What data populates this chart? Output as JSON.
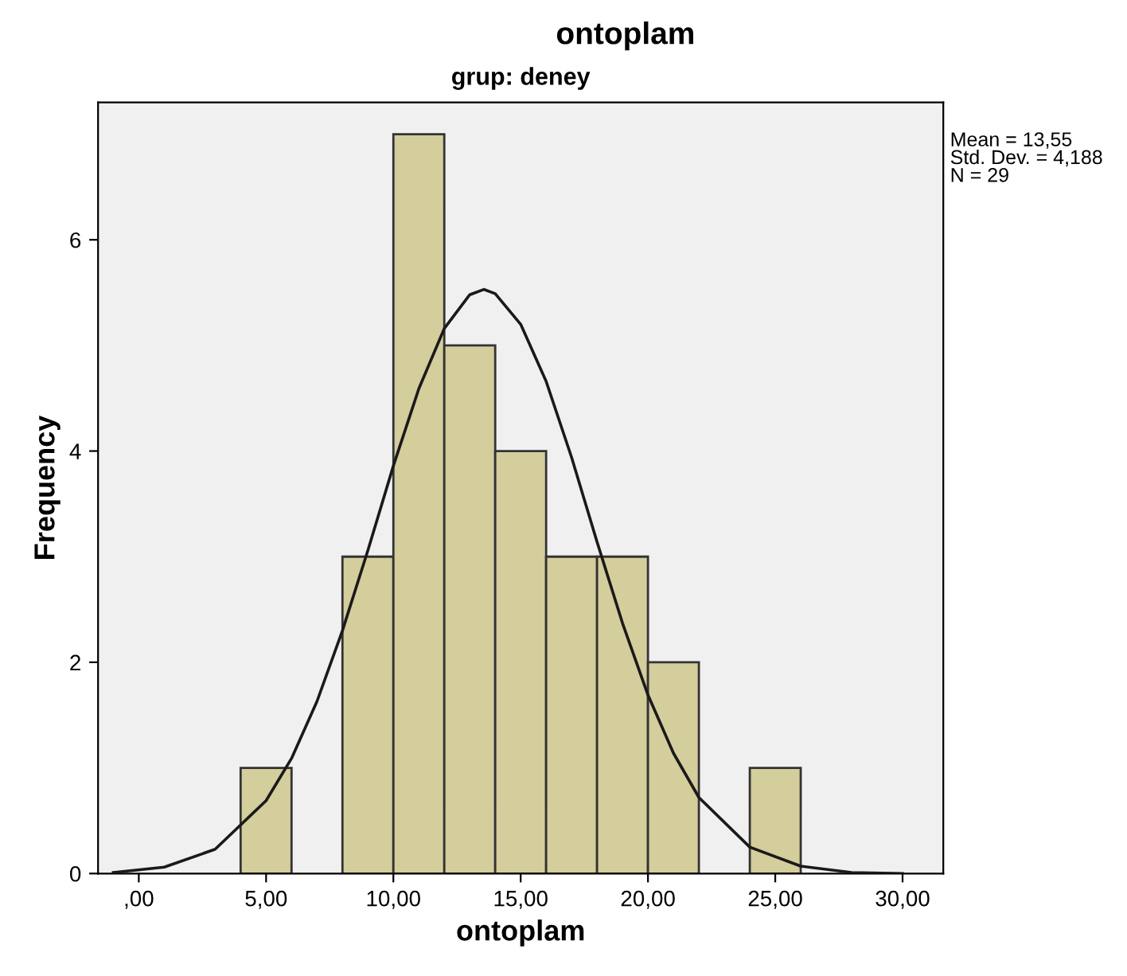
{
  "chart_data": {
    "type": "histogram",
    "title": "ontoplam",
    "subtitle": "grup: deney",
    "xlabel": "ontoplam",
    "ylabel": "Frequency",
    "series": [
      {
        "type": "histogram",
        "bins": [
          4,
          6,
          8,
          10,
          12,
          14,
          16,
          18,
          20,
          22,
          24,
          26
        ],
        "values": [
          1,
          0,
          3,
          7,
          5,
          4,
          3,
          3,
          2,
          0,
          1
        ],
        "color": "#d4cd9c"
      },
      {
        "type": "line",
        "color": "#1a1a1a",
        "x": [
          -1,
          1,
          3,
          5,
          6,
          7,
          8,
          9,
          10,
          11,
          12,
          13,
          13.55,
          14,
          15,
          16,
          17,
          18,
          19,
          20,
          21,
          22,
          24,
          26,
          28,
          30
        ],
        "values": [
          0.01,
          0.06,
          0.23,
          0.69,
          1.09,
          1.63,
          2.3,
          3.06,
          3.86,
          4.59,
          5.16,
          5.48,
          5.53,
          5.49,
          5.2,
          4.66,
          3.94,
          3.14,
          2.37,
          1.69,
          1.14,
          0.72,
          0.25,
          0.07,
          0.01,
          0.0
        ]
      }
    ],
    "xlim": [
      -1.6,
      31.6
    ],
    "ylim": [
      0,
      7.3
    ],
    "xticks": [
      {
        "value": 0,
        "label": ",00"
      },
      {
        "value": 5,
        "label": "5,00"
      },
      {
        "value": 10,
        "label": "10,00"
      },
      {
        "value": 15,
        "label": "15,00"
      },
      {
        "value": 20,
        "label": "20,00"
      },
      {
        "value": 25,
        "label": "25,00"
      },
      {
        "value": 30,
        "label": "30,00"
      }
    ],
    "yticks": [
      0,
      2,
      4,
      6
    ],
    "annotations": [
      "Mean = 13,55\nStd. Dev. = 4,188\nN = 29"
    ],
    "grid": false
  }
}
